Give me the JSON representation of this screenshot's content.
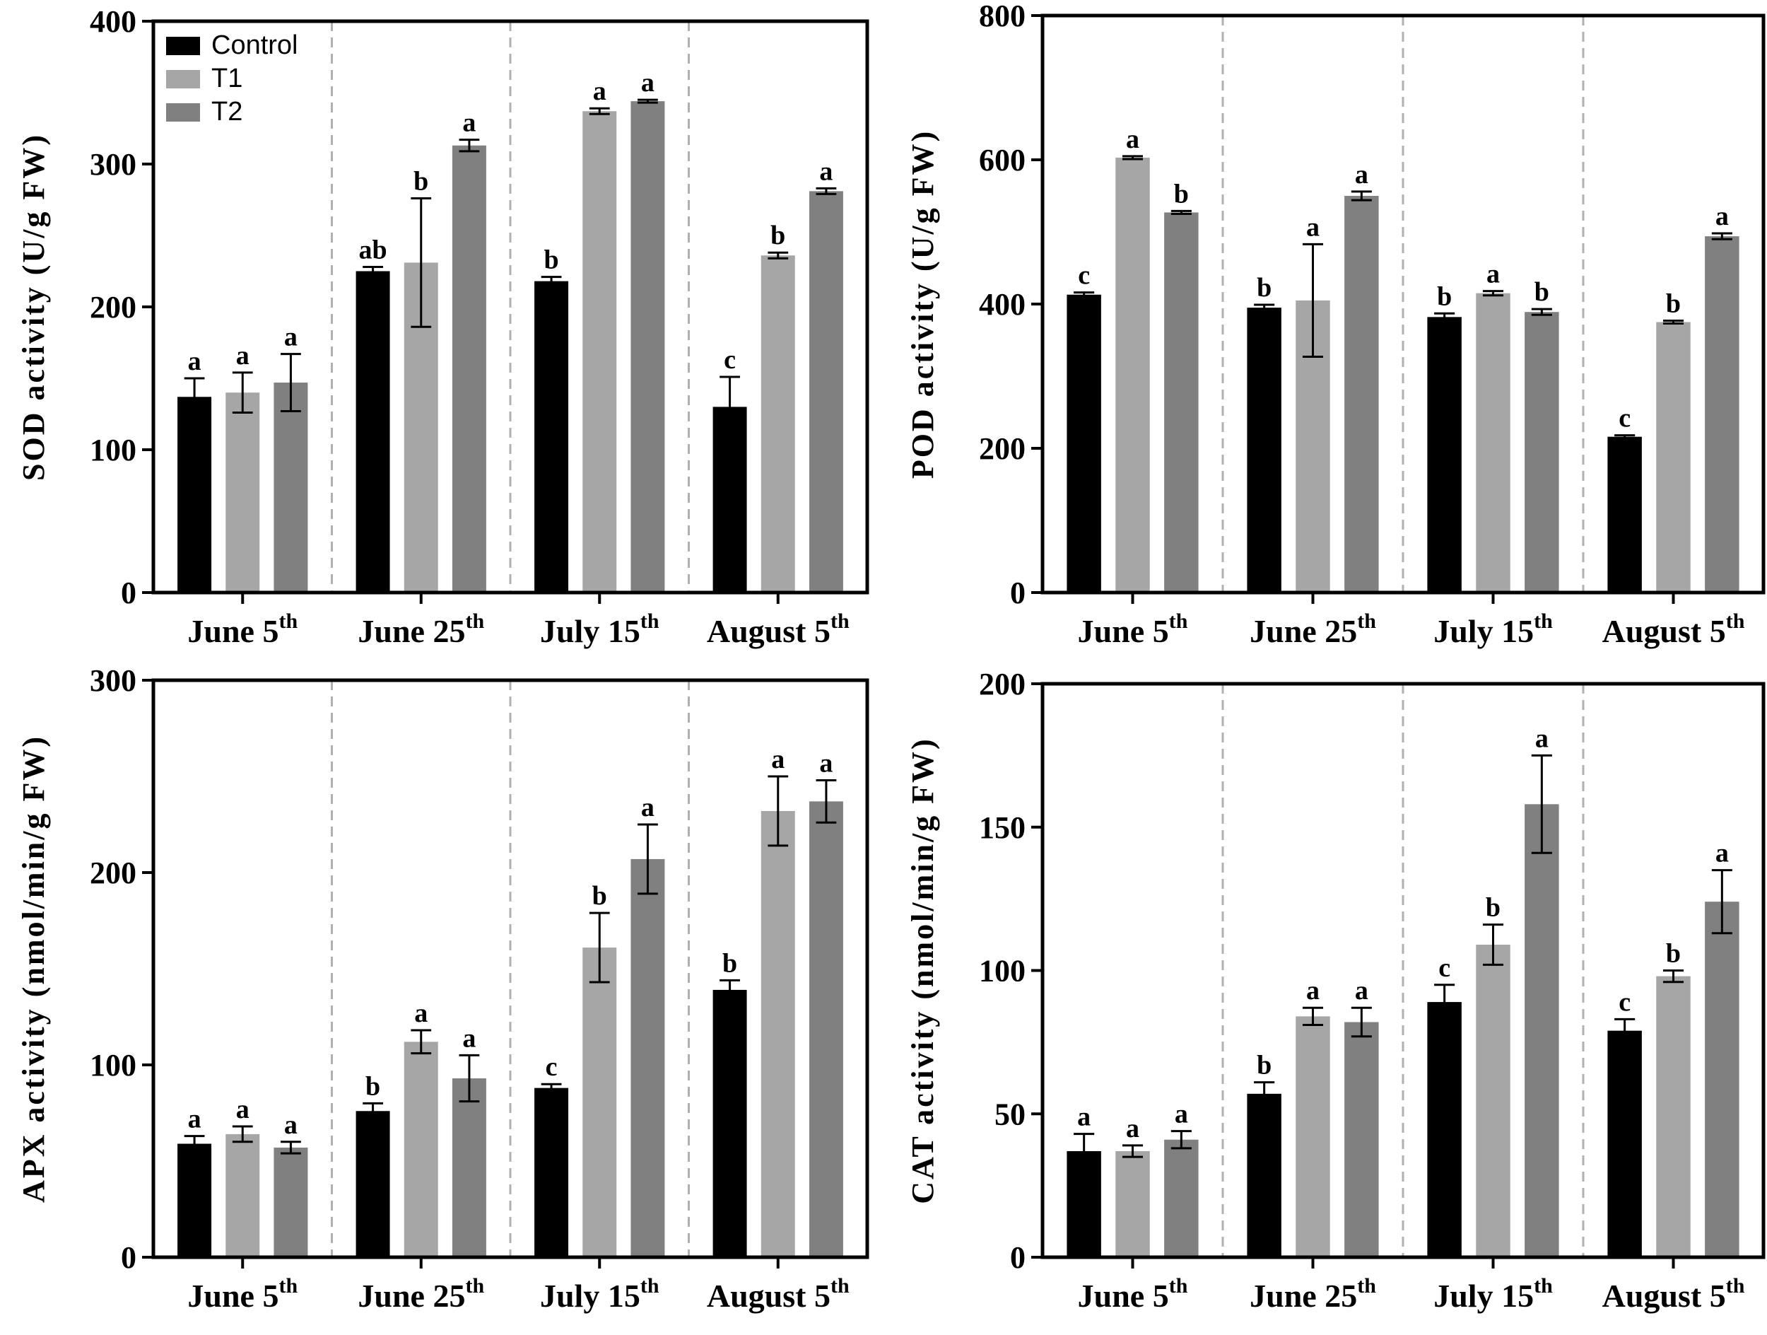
{
  "chart_data": [
    {
      "type": "bar",
      "id": "sod",
      "ylabel": "SOD activity (U/g FW)",
      "ylim": [
        0,
        400
      ],
      "yticks": [
        0,
        100,
        200,
        300,
        400
      ],
      "categories": [
        {
          "main": "June 5",
          "sup": "th"
        },
        {
          "main": "June 25",
          "sup": "th"
        },
        {
          "main": "July 15",
          "sup": "th"
        },
        {
          "main": "August 5",
          "sup": "th"
        }
      ],
      "series": [
        {
          "name": "Control",
          "values": [
            137,
            225,
            218,
            130
          ],
          "errors": [
            13,
            3,
            3,
            21
          ],
          "sig": [
            "a",
            "ab",
            "b",
            "c"
          ]
        },
        {
          "name": "T1",
          "values": [
            140,
            231,
            337,
            236
          ],
          "errors": [
            14,
            45,
            2,
            2
          ],
          "sig": [
            "a",
            "b",
            "a",
            "b"
          ]
        },
        {
          "name": "T2",
          "values": [
            147,
            313,
            344,
            281
          ],
          "errors": [
            20,
            4,
            1,
            2
          ],
          "sig": [
            "a",
            "a",
            "a",
            "a"
          ]
        }
      ],
      "legend": {
        "placement": "top-left",
        "entries": [
          "Control",
          "T1",
          "T2"
        ]
      }
    },
    {
      "type": "bar",
      "id": "pod",
      "ylabel": "POD activity (U/g FW)",
      "ylim": [
        0,
        800
      ],
      "yticks": [
        0,
        200,
        400,
        600,
        800
      ],
      "categories": [
        {
          "main": "June 5",
          "sup": "th"
        },
        {
          "main": "June 25",
          "sup": "th"
        },
        {
          "main": "July 15",
          "sup": "th"
        },
        {
          "main": "August 5",
          "sup": "th"
        }
      ],
      "series": [
        {
          "name": "Control",
          "values": [
            413,
            395,
            382,
            216
          ],
          "errors": [
            3,
            4,
            5,
            2
          ],
          "sig": [
            "c",
            "b",
            "b",
            "c"
          ]
        },
        {
          "name": "T1",
          "values": [
            603,
            405,
            415,
            375
          ],
          "errors": [
            2,
            78,
            3,
            2
          ],
          "sig": [
            "a",
            "a",
            "a",
            "b"
          ]
        },
        {
          "name": "T2",
          "values": [
            527,
            550,
            389,
            494
          ],
          "errors": [
            2,
            6,
            4,
            4
          ],
          "sig": [
            "b",
            "a",
            "b",
            "a"
          ]
        }
      ]
    },
    {
      "type": "bar",
      "id": "apx",
      "ylabel": "APX activity (nmol/min/g FW)",
      "ylim": [
        0,
        300
      ],
      "yticks": [
        0,
        100,
        200,
        300
      ],
      "categories": [
        {
          "main": "June 5",
          "sup": "th"
        },
        {
          "main": "June 25",
          "sup": "th"
        },
        {
          "main": "July 15",
          "sup": "th"
        },
        {
          "main": "August 5",
          "sup": "th"
        }
      ],
      "series": [
        {
          "name": "Control",
          "values": [
            59,
            76,
            88,
            139
          ],
          "errors": [
            4,
            4,
            2,
            5
          ],
          "sig": [
            "a",
            "b",
            "c",
            "b"
          ]
        },
        {
          "name": "T1",
          "values": [
            64,
            112,
            161,
            232
          ],
          "errors": [
            4,
            6,
            18,
            18
          ],
          "sig": [
            "a",
            "a",
            "b",
            "a"
          ]
        },
        {
          "name": "T2",
          "values": [
            57,
            93,
            207,
            237
          ],
          "errors": [
            3,
            12,
            18,
            11
          ],
          "sig": [
            "a",
            "a",
            "a",
            "a"
          ]
        }
      ]
    },
    {
      "type": "bar",
      "id": "cat",
      "ylabel": "CAT activity (nmol/min/g FW)",
      "ylim": [
        0,
        200
      ],
      "yticks": [
        0,
        50,
        100,
        150,
        200
      ],
      "categories": [
        {
          "main": "June 5",
          "sup": "th"
        },
        {
          "main": "June 25",
          "sup": "th"
        },
        {
          "main": "July 15",
          "sup": "th"
        },
        {
          "main": "August 5",
          "sup": "th"
        }
      ],
      "series": [
        {
          "name": "Control",
          "values": [
            37,
            57,
            89,
            79
          ],
          "errors": [
            6,
            4,
            6,
            4
          ],
          "sig": [
            "a",
            "b",
            "c",
            "c"
          ]
        },
        {
          "name": "T1",
          "values": [
            37,
            84,
            109,
            98
          ],
          "errors": [
            2,
            3,
            7,
            2
          ],
          "sig": [
            "a",
            "a",
            "b",
            "b"
          ]
        },
        {
          "name": "T2",
          "values": [
            41,
            82,
            158,
            124
          ],
          "errors": [
            3,
            5,
            17,
            11
          ],
          "sig": [
            "a",
            "a",
            "a",
            "a"
          ]
        }
      ]
    }
  ],
  "colors": {
    "Control": "#000000",
    "T1": "#a6a6a6",
    "T2": "#808080",
    "divider": "#b0b0b0"
  }
}
